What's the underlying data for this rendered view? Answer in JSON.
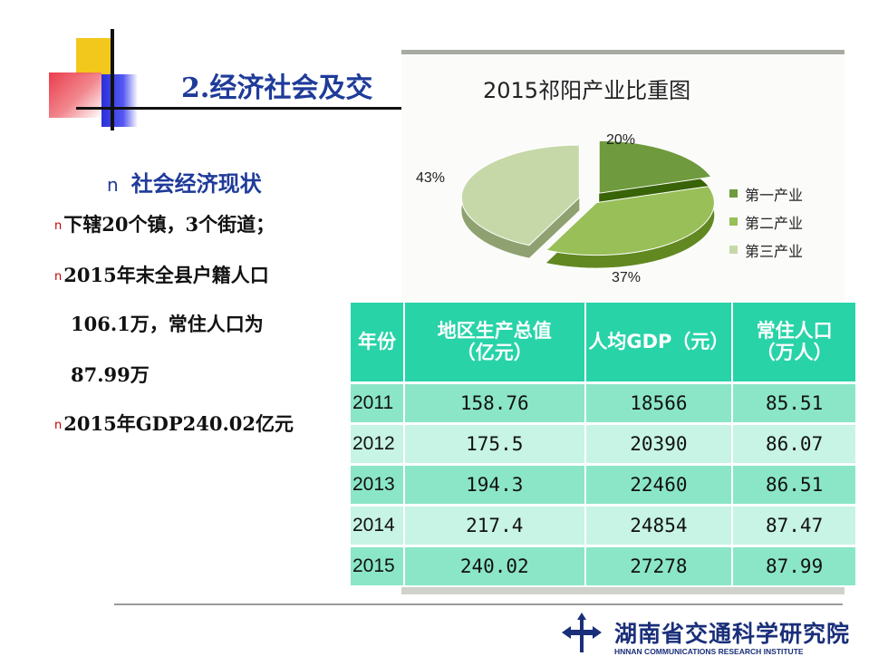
{
  "slide": {
    "title": "2.经济社会及交"
  },
  "content": {
    "bullet_glyph": "n",
    "heading": "社会经济现状",
    "line1": "下辖20个镇，3个街道；",
    "line2": "2015年末全县户籍人口",
    "line3": "106.1万，常住人口为",
    "line4": "87.99万",
    "line5": "2015年GDP240.02亿元"
  },
  "chart_data": {
    "type": "pie",
    "title": "2015祁阳产业比重图",
    "categories": [
      "第一产业",
      "第二产业",
      "第三产业"
    ],
    "values": [
      20,
      37,
      43
    ],
    "labels": [
      "20%",
      "37%",
      "43%"
    ],
    "colors": [
      "#6f9a3e",
      "#98bf58",
      "#c6d8a8"
    ],
    "legend": "right"
  },
  "table": {
    "headers": [
      "年份",
      "地区生产总值\n（亿元）",
      "人均GDP（元）",
      "常住人口\n（万人）"
    ],
    "rows": [
      [
        "2011",
        "158.76",
        "18566",
        "85.51"
      ],
      [
        "2012",
        "175.5",
        "20390",
        "86.07"
      ],
      [
        "2013",
        "194.3",
        "22460",
        "86.51"
      ],
      [
        "2014",
        "217.4",
        "24854",
        "87.47"
      ],
      [
        "2015",
        "240.02",
        "27278",
        "87.99"
      ]
    ]
  },
  "footer": {
    "org_cn": "湖南省交通科学研究院",
    "org_en": "HNNAN COMMUNICATIONS RESEARCH INSTITUTE"
  }
}
